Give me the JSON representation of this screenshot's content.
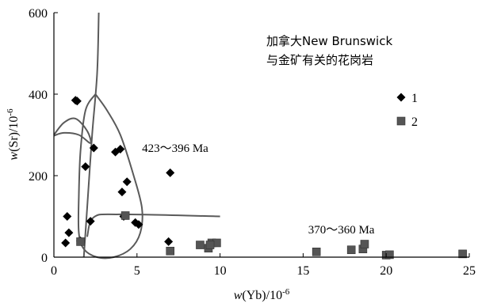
{
  "chart_data": {
    "type": "scatter",
    "x": {
      "label_prefix": "w(Yb)/10",
      "label_exp": "-6",
      "range": [
        0,
        25
      ],
      "ticks": [
        0,
        5,
        10,
        15,
        20,
        25
      ]
    },
    "y": {
      "label_prefix": "w(Sr)/10",
      "label_exp": "-6",
      "range": [
        0,
        600
      ],
      "ticks": [
        0,
        200,
        400,
        600
      ]
    },
    "grid": false,
    "legend": {
      "placement": "right"
    },
    "annotation": {
      "line1": "加拿大New Brunswick",
      "line2": "与金矿有关的花岗岩"
    },
    "age_labels": [
      {
        "text": "423～396 Ma",
        "x": 5.3,
        "y": 258
      },
      {
        "text": "370～360 Ma",
        "x": 15.3,
        "y": 58
      }
    ],
    "series": [
      {
        "name": "1",
        "marker": "diamond",
        "points": [
          [
            1.3,
            385
          ],
          [
            1.4,
            383
          ],
          [
            1.9,
            222
          ],
          [
            2.4,
            268
          ],
          [
            3.7,
            258
          ],
          [
            4.0,
            265
          ],
          [
            4.1,
            160
          ],
          [
            4.4,
            185
          ],
          [
            7.0,
            207
          ],
          [
            0.8,
            100
          ],
          [
            0.9,
            60
          ],
          [
            0.7,
            35
          ],
          [
            2.2,
            88
          ],
          [
            4.9,
            85
          ],
          [
            5.1,
            80
          ],
          [
            6.9,
            38
          ],
          [
            4.2,
            100
          ],
          [
            1.6,
            40
          ]
        ]
      },
      {
        "name": "2",
        "marker": "square",
        "points": [
          [
            1.6,
            38
          ],
          [
            4.3,
            102
          ],
          [
            7.0,
            15
          ],
          [
            8.8,
            30
          ],
          [
            9.3,
            22
          ],
          [
            9.5,
            35
          ],
          [
            9.8,
            35
          ],
          [
            9.4,
            30
          ],
          [
            15.8,
            13
          ],
          [
            17.9,
            18
          ],
          [
            18.6,
            20
          ],
          [
            18.7,
            32
          ],
          [
            20.0,
            5
          ],
          [
            20.2,
            6
          ],
          [
            24.6,
            8
          ]
        ]
      }
    ],
    "fields": [
      {
        "name": "tall-curve",
        "points": [
          [
            2.7,
            600
          ],
          [
            2.6,
            450
          ],
          [
            2.3,
            300
          ],
          [
            2.0,
            120
          ],
          [
            1.8,
            0
          ]
        ]
      },
      {
        "name": "loop-left",
        "points": [
          [
            0,
            300
          ],
          [
            0.6,
            330
          ],
          [
            1.3,
            340
          ],
          [
            2.0,
            310
          ],
          [
            2.2,
            280
          ],
          [
            1.5,
            300
          ],
          [
            0.6,
            305
          ],
          [
            0,
            298
          ]
        ]
      },
      {
        "name": "loop-main",
        "points": [
          [
            2.5,
            400
          ],
          [
            3.2,
            360
          ],
          [
            4.0,
            300
          ],
          [
            4.8,
            200
          ],
          [
            5.3,
            120
          ],
          [
            5.2,
            60
          ],
          [
            4.6,
            20
          ],
          [
            3.6,
            0
          ],
          [
            2.6,
            0
          ],
          [
            1.8,
            20
          ],
          [
            1.5,
            60
          ],
          [
            1.5,
            150
          ],
          [
            1.6,
            260
          ],
          [
            1.9,
            360
          ],
          [
            2.5,
            400
          ]
        ]
      },
      {
        "name": "lower-curve",
        "points": [
          [
            2.0,
            50
          ],
          [
            2.4,
            98
          ],
          [
            4.0,
            105
          ],
          [
            10.0,
            100
          ]
        ]
      }
    ]
  }
}
